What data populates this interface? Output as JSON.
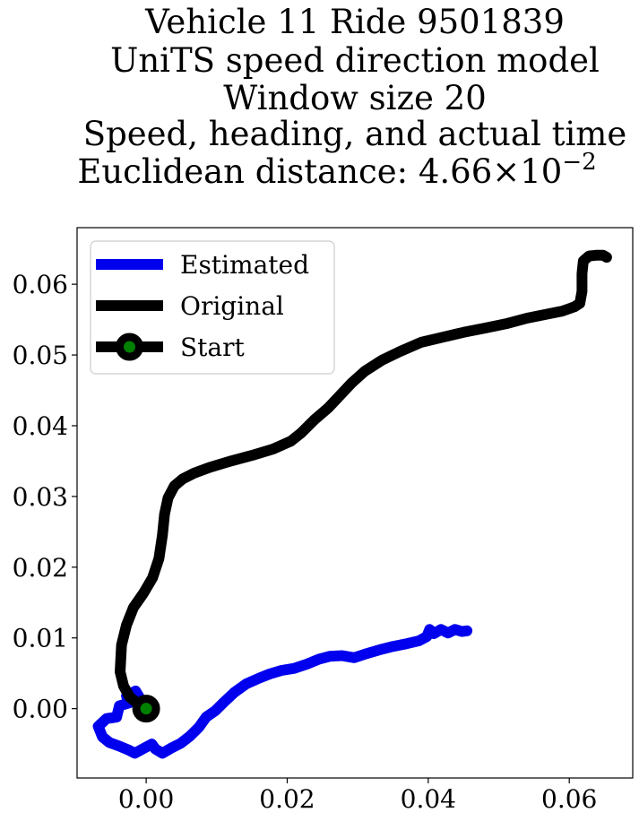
{
  "chart_data": {
    "type": "line",
    "title_lines": [
      "Vehicle 11 Ride 9501839",
      "UniTS speed direction model",
      "Window size 20",
      "Speed, heading, and actual time",
      "Euclidean distance: 4.66×10"
    ],
    "title_exponent": "−2",
    "xlim": [
      -0.0098,
      0.069
    ],
    "ylim": [
      -0.0098,
      0.068
    ],
    "x_ticks": [
      {
        "value": 0.0,
        "label": "0.00"
      },
      {
        "value": 0.02,
        "label": "0.02"
      },
      {
        "value": 0.04,
        "label": "0.04"
      },
      {
        "value": 0.06,
        "label": "0.06"
      }
    ],
    "y_ticks": [
      {
        "value": 0.0,
        "label": "0.00"
      },
      {
        "value": 0.01,
        "label": "0.01"
      },
      {
        "value": 0.02,
        "label": "0.02"
      },
      {
        "value": 0.03,
        "label": "0.03"
      },
      {
        "value": 0.04,
        "label": "0.04"
      },
      {
        "value": 0.05,
        "label": "0.05"
      },
      {
        "value": 0.06,
        "label": "0.06"
      }
    ],
    "legend_position": "top-left",
    "grid": false,
    "series": [
      {
        "name": "Estimated",
        "color": "#0000ee",
        "x": [
          0.0,
          -0.0015,
          -0.0028,
          -0.0024,
          -0.0038,
          -0.0042,
          -0.0056,
          -0.0068,
          -0.0062,
          -0.0052,
          -0.0038,
          -0.0026,
          -0.0016,
          -0.0005,
          0.0008,
          0.0013,
          0.0023,
          0.0035,
          0.0049,
          0.0062,
          0.0075,
          0.0085,
          0.0098,
          0.011,
          0.0125,
          0.0142,
          0.016,
          0.0175,
          0.0192,
          0.021,
          0.0228,
          0.0245,
          0.026,
          0.0278,
          0.0295,
          0.031,
          0.033,
          0.035,
          0.037,
          0.0387,
          0.0398,
          0.0402,
          0.0408,
          0.0418,
          0.0428,
          0.0438,
          0.0448,
          0.0455
        ],
        "y": [
          0.0,
          0.0025,
          0.0018,
          0.0008,
          0.0004,
          -0.0012,
          -0.0014,
          -0.0025,
          -0.004,
          -0.0048,
          -0.0053,
          -0.0058,
          -0.0063,
          -0.0057,
          -0.005,
          -0.0057,
          -0.0063,
          -0.0056,
          -0.0049,
          -0.0039,
          -0.0026,
          -0.0012,
          -0.0003,
          0.0009,
          0.0023,
          0.0035,
          0.0043,
          0.0049,
          0.0054,
          0.0057,
          0.0063,
          0.007,
          0.0074,
          0.0075,
          0.0072,
          0.0077,
          0.0083,
          0.0088,
          0.0092,
          0.0096,
          0.0102,
          0.0112,
          0.0106,
          0.0112,
          0.0107,
          0.0112,
          0.0109,
          0.011
        ]
      },
      {
        "name": "Original",
        "color": "#000000",
        "x": [
          0.0,
          -0.001,
          -0.0023,
          -0.0032,
          -0.0037,
          -0.0035,
          -0.0028,
          -0.0018,
          -0.0004,
          0.0009,
          0.0018,
          0.0023,
          0.0026,
          0.0031,
          0.004,
          0.0052,
          0.0068,
          0.009,
          0.012,
          0.015,
          0.018,
          0.0205,
          0.022,
          0.0238,
          0.0258,
          0.0275,
          0.0292,
          0.031,
          0.0335,
          0.036,
          0.039,
          0.042,
          0.045,
          0.048,
          0.051,
          0.054,
          0.057,
          0.059,
          0.0607,
          0.0615,
          0.0618,
          0.0618,
          0.062,
          0.0628,
          0.0638,
          0.0648,
          0.0653
        ],
        "y": [
          0.0,
          0.0006,
          0.0016,
          0.0032,
          0.0052,
          0.009,
          0.0118,
          0.0143,
          0.0163,
          0.0185,
          0.0212,
          0.0245,
          0.0275,
          0.0298,
          0.0315,
          0.0325,
          0.0333,
          0.0341,
          0.035,
          0.0358,
          0.0367,
          0.0378,
          0.039,
          0.0408,
          0.0425,
          0.0443,
          0.0461,
          0.0477,
          0.0493,
          0.0505,
          0.0518,
          0.0525,
          0.0532,
          0.0538,
          0.0544,
          0.0552,
          0.0558,
          0.0562,
          0.0568,
          0.0573,
          0.059,
          0.0615,
          0.0633,
          0.064,
          0.0641,
          0.0641,
          0.0638
        ]
      }
    ],
    "start": {
      "name": "Start",
      "x": 0.0,
      "y": 0.0,
      "marker_edge_color": "#000000",
      "marker_face_color": "#008000"
    }
  }
}
